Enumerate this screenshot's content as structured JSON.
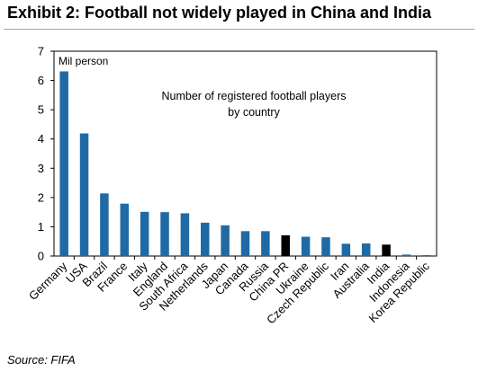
{
  "exhibit": {
    "title": "Exhibit 2: Football not widely played in China and India",
    "source": "Source: FIFA"
  },
  "chart_data": {
    "type": "bar",
    "unit_label": "Mil person",
    "annotation": [
      "Number of registered football players",
      "by country"
    ],
    "categories": [
      "Germany",
      "USA",
      "Brazil",
      "France",
      "Italy",
      "England",
      "South Africa",
      "Netherlands",
      "Japan",
      "Canada",
      "Russia",
      "China PR",
      "Ukraine",
      "Czech Republic",
      "Iran",
      "Australia",
      "India",
      "Indonesia",
      "Korea Republic"
    ],
    "values": [
      6.31,
      4.19,
      2.14,
      1.79,
      1.51,
      1.5,
      1.46,
      1.14,
      1.05,
      0.85,
      0.85,
      0.71,
      0.66,
      0.64,
      0.42,
      0.43,
      0.39,
      0.05,
      0.03
    ],
    "highlight": [
      "China PR",
      "India"
    ],
    "ylim": [
      0,
      7
    ],
    "yticks": [
      0,
      1,
      2,
      3,
      4,
      5,
      6,
      7
    ],
    "colors": {
      "bar": "#1f6aa5",
      "highlight": "#000000",
      "axis": "#000000"
    },
    "grid": false,
    "legend": "none"
  }
}
